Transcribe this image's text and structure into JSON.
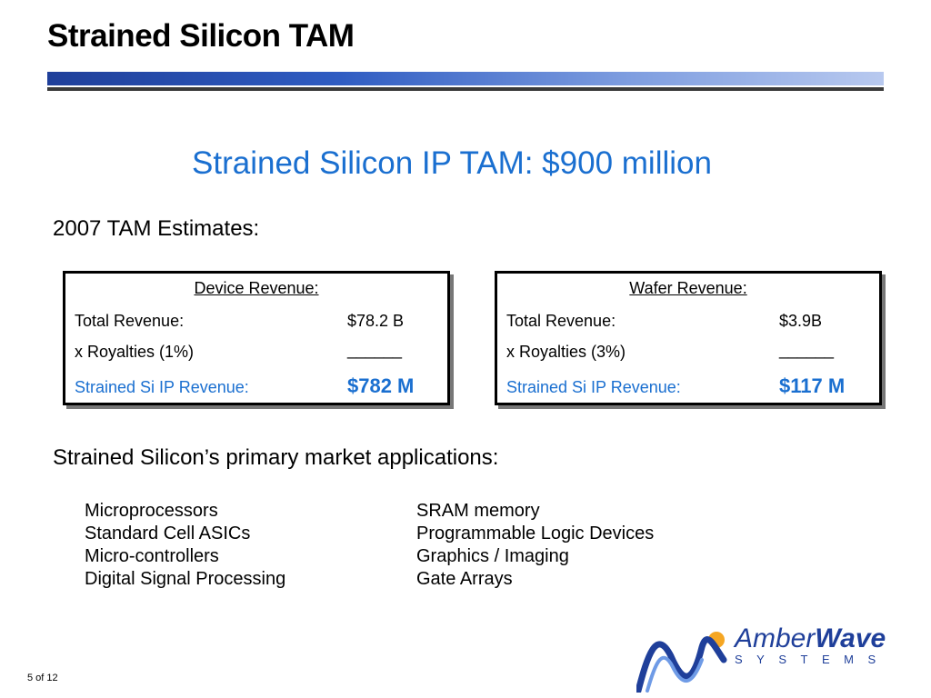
{
  "slide": {
    "title": "Strained Silicon TAM",
    "subtitle": "Strained Silicon IP TAM: $900 million",
    "estimates_heading": "2007 TAM Estimates:",
    "applications_heading": "Strained Silicon’s primary market applications:",
    "page_number": "5 of 12"
  },
  "device_box": {
    "heading": "Device Revenue:",
    "total_label": "Total Revenue:",
    "total_value": "$78.2 B",
    "royalty_label": "x Royalties (1%)",
    "royalty_value": "______",
    "ip_label": "Strained Si IP Revenue:",
    "ip_value": "$782 M"
  },
  "wafer_box": {
    "heading": "Wafer Revenue:",
    "total_label": "Total Revenue:",
    "total_value": "$3.9B",
    "royalty_label": "x Royalties (3%)",
    "royalty_value": "______",
    "ip_label": "Strained Si IP Revenue:",
    "ip_value": "$117 M"
  },
  "applications": {
    "left": [
      "Microprocessors",
      "Standard Cell ASICs",
      "Micro-controllers",
      "Digital Signal Processing"
    ],
    "right": [
      "SRAM memory",
      "Programmable Logic Devices",
      "Graphics / Imaging",
      "Gate Arrays"
    ]
  },
  "logo": {
    "name_part1": "Amber",
    "name_part2": "Wave",
    "tagline": "SYSTEMS",
    "colors": {
      "navy": "#1f3f9a",
      "orange": "#f5a623",
      "blue": "#3a6fd8"
    }
  },
  "colors": {
    "accent_blue": "#1a6fd0",
    "title_bar": "#2f5cc2"
  }
}
